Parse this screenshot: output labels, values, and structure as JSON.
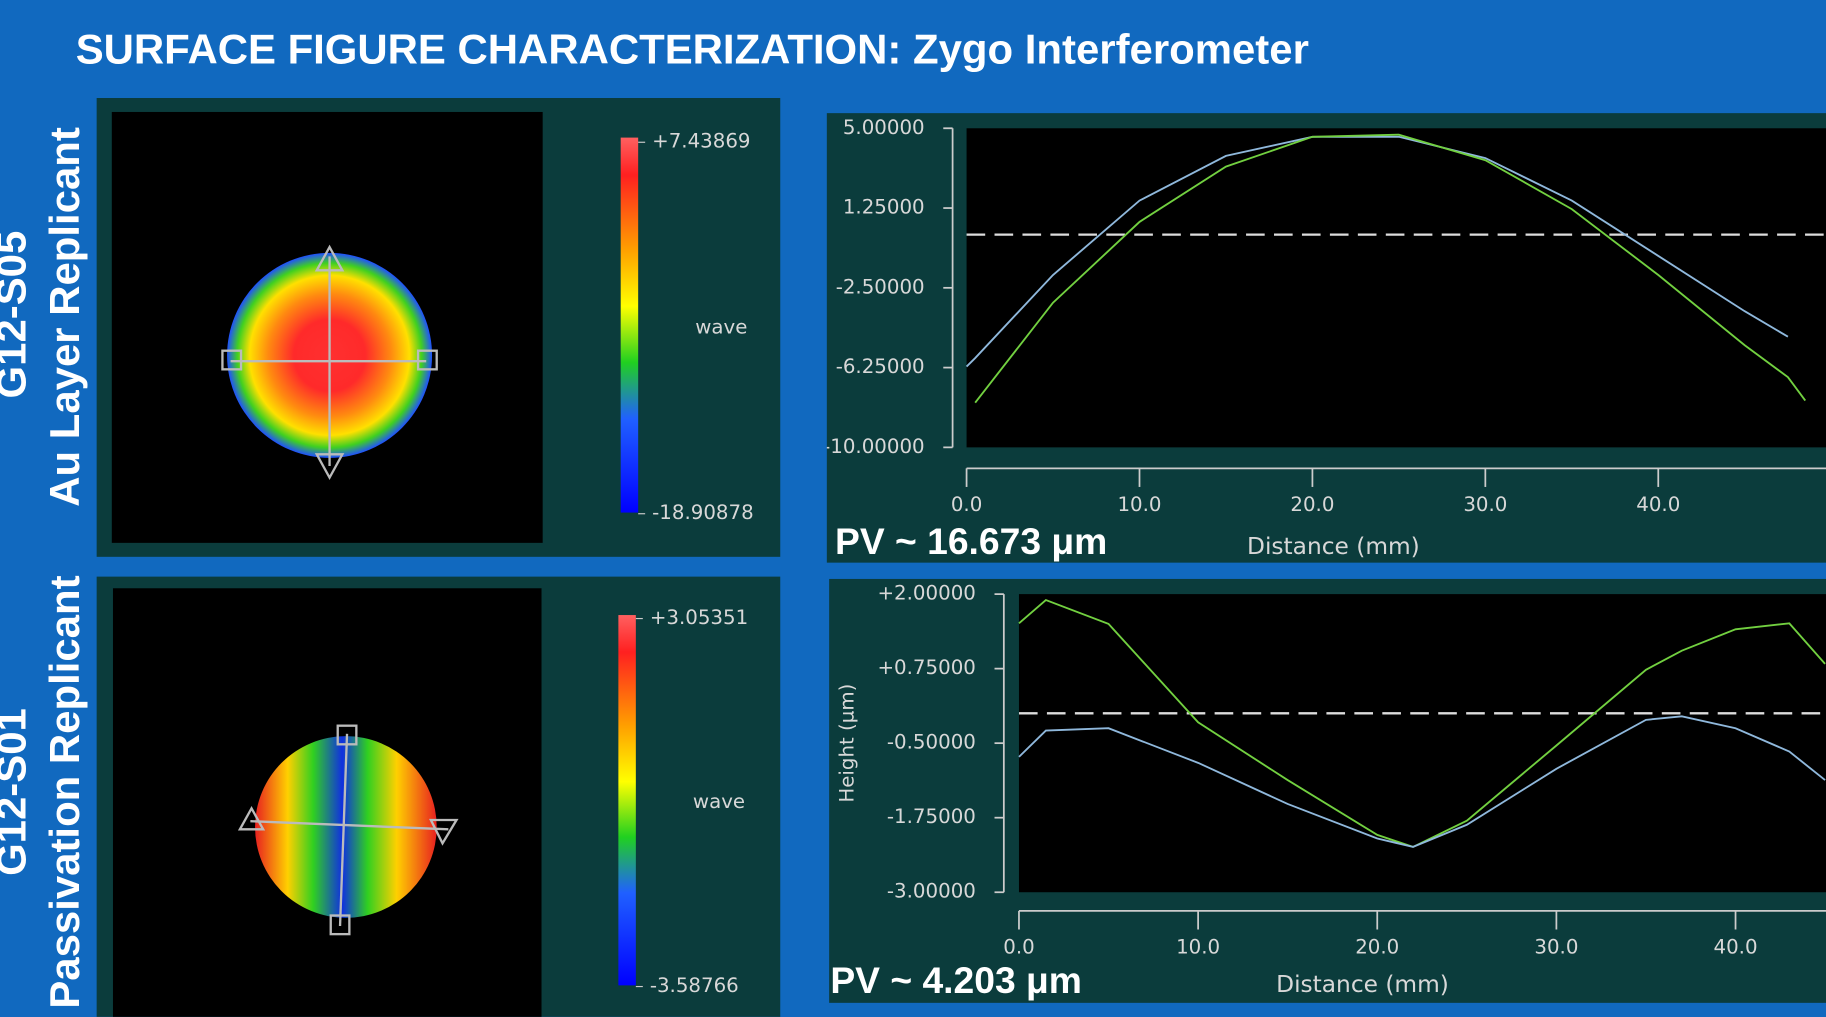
{
  "title": "SURFACE FIGURE CHARACTERIZATION: Zygo Interferometer",
  "samples": [
    {
      "id": "G12-S05",
      "label": "Au Layer Replicant",
      "colorbar_max": {
        "value": 7.43869,
        "label": "+7.43869"
      },
      "colorbar_min": -18.90878,
      "colorbar_unit": "wave"
    },
    {
      "id": "G12-S01",
      "label": "Passivation Replicant",
      "colorbar_max": {
        "value": 3.05351,
        "label": "+3.05351"
      },
      "colorbar_min": -3.58766,
      "colorbar_unit": "wave"
    }
  ],
  "chart_data": [
    {
      "type": "line",
      "xlabel": "Distance (mm)",
      "annotation": "PV ~ 16.673 μm",
      "x": [
        0,
        0.5,
        5,
        10,
        15,
        20,
        25,
        30,
        35,
        40,
        45,
        47.5,
        48.5
      ],
      "series": [
        {
          "color": "#8fb8dc",
          "values": [
            -6.2,
            -5.8,
            -1.9,
            1.6,
            3.7,
            4.6,
            4.6,
            3.6,
            1.6,
            -1.0,
            -3.6,
            -4.8,
            null
          ]
        },
        {
          "color": "#72d040",
          "values": [
            null,
            -7.9,
            -3.2,
            0.6,
            3.2,
            4.6,
            4.7,
            3.5,
            1.2,
            -1.9,
            -5.2,
            -6.7,
            -7.8
          ]
        }
      ],
      "hline": 0,
      "xlim": [
        0,
        49.7
      ],
      "ylim": [
        -10,
        5
      ],
      "xticks": [
        {
          "value": 0,
          "label": "0.0"
        },
        {
          "value": 10,
          "label": "10.0"
        },
        {
          "value": 20,
          "label": "20.0"
        },
        {
          "value": 30,
          "label": "30.0"
        },
        {
          "value": 40,
          "label": "40.0"
        }
      ],
      "yticks": [
        {
          "value": 5,
          "label": "5.00000"
        },
        {
          "value": 1.25,
          "label": "1.25000"
        },
        {
          "value": -2.5,
          "label": "-2.50000"
        },
        {
          "value": -6.25,
          "label": "-6.25000"
        },
        {
          "value": -10,
          "label": "-10.00000"
        }
      ]
    },
    {
      "type": "line",
      "xlabel": "Distance (mm)",
      "ylabel": "Height (µm)",
      "annotation": "PV ~ 4.203 μm",
      "x": [
        0,
        1.5,
        5,
        10,
        15,
        20,
        22,
        25,
        30,
        35,
        37,
        40,
        43,
        45
      ],
      "series": [
        {
          "color": "#72d040",
          "values": [
            1.51,
            1.9,
            1.5,
            -0.15,
            -1.12,
            -2.04,
            -2.24,
            -1.8,
            -0.54,
            0.73,
            1.05,
            1.41,
            1.51,
            0.83
          ]
        },
        {
          "color": "#8fb8dc",
          "values": [
            -0.73,
            -0.29,
            -0.25,
            -0.83,
            -1.52,
            -2.1,
            -2.24,
            -1.87,
            -0.93,
            -0.11,
            -0.05,
            -0.25,
            -0.64,
            -1.12
          ]
        }
      ],
      "hline": 0,
      "xlim": [
        0,
        45.05
      ],
      "ylim": [
        -3,
        2
      ],
      "xticks": [
        {
          "value": 0,
          "label": "0.0"
        },
        {
          "value": 10,
          "label": "10.0"
        },
        {
          "value": 20,
          "label": "20.0"
        },
        {
          "value": 30,
          "label": "30.0"
        },
        {
          "value": 40,
          "label": "40.0"
        }
      ],
      "yticks": [
        {
          "value": 2,
          "label": "+2.00000"
        },
        {
          "value": 0.75,
          "label": "+0.75000"
        },
        {
          "value": -0.5,
          "label": "-0.50000"
        },
        {
          "value": -1.75,
          "label": "-1.75000"
        },
        {
          "value": -3,
          "label": "-3.00000"
        }
      ]
    }
  ]
}
